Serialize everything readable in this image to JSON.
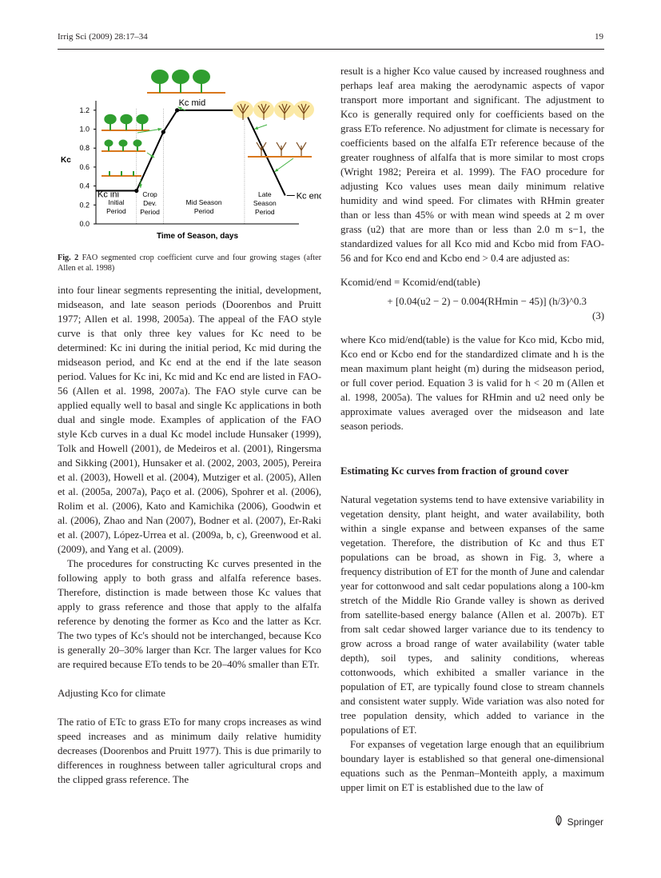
{
  "header": {
    "journal": "Irrig Sci (2009) 28:17–34",
    "page": "19"
  },
  "figure": {
    "caption_label": "Fig. 2",
    "caption_text": "FAO segmented crop coefficient curve and four growing stages (after Allen et al. 1998)",
    "kc_axis_label": "Kc",
    "xlabel": "Time of Season, days",
    "kc_ini": "Kc ini",
    "kc_mid": "Kc mid",
    "kc_end": "Kc end",
    "periods": [
      "Initial Period",
      "Crop Dev. Period",
      "Mid Season Period",
      "Late Season Period"
    ],
    "colors": {
      "line": "#000000",
      "tree": "#2f9e2f",
      "ground": "#d9771c",
      "arrow": "#3fb13f",
      "dry": "#fbe9a6"
    }
  },
  "chart_data": {
    "type": "line",
    "title": "",
    "xlabel": "Time of Season, days",
    "ylabel": "Kc",
    "yticks": [
      "0.0",
      "0.2",
      "0.4",
      "0.6",
      "0.8",
      "1.0",
      "1.2"
    ],
    "ylim": [
      0,
      1.3
    ],
    "series": [
      {
        "values": [
          [
            0,
            0.35
          ],
          [
            0.5,
            0.35
          ],
          [
            0.83,
            0.97
          ],
          [
            1.0,
            1.2
          ],
          [
            1.83,
            1.2
          ],
          [
            2.33,
            0.3
          ]
        ]
      }
    ],
    "annotations": [
      "Kc ini",
      "Kc mid",
      "Kc end"
    ]
  },
  "left": {
    "p1": "into four linear segments representing the initial, development, midseason, and late season periods (Doorenbos and Pruitt 1977; Allen et al. 1998, 2005a). The appeal of the FAO style curve is that only three key values for Kc need to be determined: Kc ini during the initial period, Kc mid during the midseason period, and Kc end at the end if the late season period. Values for Kc ini, Kc mid and Kc end are listed in FAO-56 (Allen et al. 1998, 2007a). The FAO style curve can be applied equally well to basal and single Kc applications in both dual and single mode. Examples of application of the FAO style Kcb curves in a dual Kc model include Hunsaker (1999), Tolk and Howell (2001), de Medeiros et al. (2001), Ringersma and Sikking (2001), Hunsaker et al. (2002, 2003, 2005), Pereira et al. (2003), Howell et al. (2004), Mutziger et al. (2005), Allen et al. (2005a, 2007a), Paço et al. (2006), Spohrer et al. (2006), Rolim et al. (2006), Kato and Kamichika (2006), Goodwin et al. (2006), Zhao and Nan (2007), Bodner et al. (2007), Er-Raki et al. (2007), López-Urrea et al. (2009a, b, c), Greenwood et al. (2009), and Yang et al. (2009).",
    "p2": "The procedures for constructing Kc curves presented in the following apply to both grass and alfalfa reference bases. Therefore, distinction is made between those Kc values that apply to grass reference and those that apply to the alfalfa reference by denoting the former as Kco and the latter as Kcr. The two types of Kc's should not be interchanged, because Kco is generally 20–30% larger than Kcr. The larger values for Kco are required because ETo tends to be 20–40% smaller than ETr.",
    "heading": "Adjusting Kco for climate",
    "p3": "The ratio of ETc to grass ETo for many crops increases as wind speed increases and as minimum daily relative humidity decreases (Doorenbos and Pruitt 1977). This is due primarily to differences in roughness between taller agricultural crops and the clipped grass reference. The"
  },
  "right": {
    "p1": "result is a higher Kco value caused by increased roughness and perhaps leaf area making the aerodynamic aspects of vapor transport more important and significant. The adjustment to Kco is generally required only for coefficients based on the grass ETo reference. No adjustment for climate is necessary for coefficients based on the alfalfa ETr reference because of the greater roughness of alfalfa that is more similar to most crops (Wright 1982; Pereira et al. 1999). The FAO procedure for adjusting Kco values uses mean daily minimum relative humidity and wind speed. For climates with RHmin greater than or less than 45% or with mean wind speeds at 2 m over grass (u2) that are more than or less than 2.0 m s−1, the standardized values for all Kco mid and Kcbo mid from FAO-56 and for Kco end and Kcbo end > 0.4 are adjusted as:",
    "eq_line1": "Kcomid/end = Kcomid/end(table)",
    "eq_line2": "+ [0.04(u2 − 2) − 0.004(RHmin − 45)] (h/3)^0.3",
    "eq_number": "(3)",
    "p2": "where Kco mid/end(table) is the value for Kco mid, Kcbo mid, Kco end or Kcbo end for the standardized climate and h is the mean maximum plant height (m) during the midseason period, or full cover period. Equation 3 is valid for h < 20 m (Allen et al. 1998, 2005a). The values for RHmin and u2 need only be approximate values averaged over the midseason and late season periods.",
    "heading": "Estimating Kc curves from fraction of ground cover",
    "p3": "Natural vegetation systems tend to have extensive variability in vegetation density, plant height, and water availability, both within a single expanse and between expanses of the same vegetation. Therefore, the distribution of Kc and thus ET populations can be broad, as shown in Fig. 3, where a frequency distribution of ET for the month of June and calendar year for cottonwood and salt cedar populations along a 100-km stretch of the Middle Rio Grande valley is shown as derived from satellite-based energy balance (Allen et al. 2007b). ET from salt cedar showed larger variance due to its tendency to grow across a broad range of water availability (water table depth), soil types, and salinity conditions, whereas cottonwoods, which exhibited a smaller variance in the population of ET, are typically found close to stream channels and consistent water supply. Wide variation was also noted for tree population density, which added to variance in the populations of ET.",
    "p4": "For expanses of vegetation large enough that an equilibrium boundary layer is established so that general one-dimensional equations such as the Penman–Monteith apply, a maximum upper limit on ET is established due to the law of"
  },
  "footer": {
    "publisher": "Springer"
  }
}
